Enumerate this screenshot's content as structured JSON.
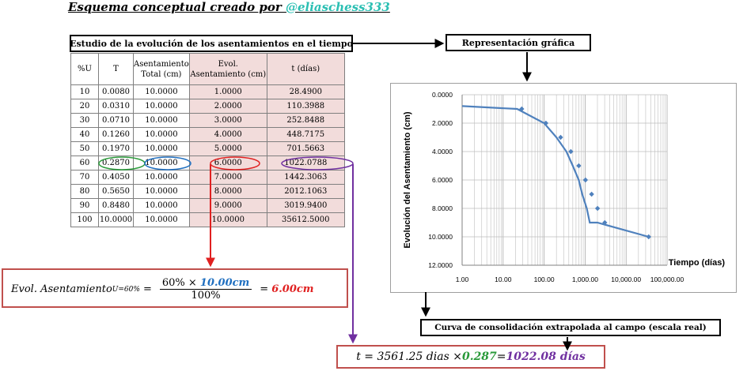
{
  "title": {
    "prefix": "Esquema  conceptual creado por ",
    "user": "@eliaschess333"
  },
  "table_title": "Estudio de la evolución de los asentamientos en el tiempo",
  "graph_title": "Representación gráfica",
  "curve_title": "Curva de consolidación extrapolada al campo (escala real)",
  "table": {
    "headers": [
      "%U",
      "T",
      "Asentamiento Total (cm)",
      "Evol. Asentamiento (cm)",
      "t (días)"
    ],
    "rows": [
      [
        "10",
        "0.0080",
        "10.0000",
        "1.0000",
        "28.4900"
      ],
      [
        "20",
        "0.0310",
        "10.0000",
        "2.0000",
        "110.3988"
      ],
      [
        "30",
        "0.0710",
        "10.0000",
        "3.0000",
        "252.8488"
      ],
      [
        "40",
        "0.1260",
        "10.0000",
        "4.0000",
        "448.7175"
      ],
      [
        "50",
        "0.1970",
        "10.0000",
        "5.0000",
        "701.5663"
      ],
      [
        "60",
        "0.2870",
        "10.0000",
        "6.0000",
        "1022.0788"
      ],
      [
        "70",
        "0.4050",
        "10.0000",
        "7.0000",
        "1442.3063"
      ],
      [
        "80",
        "0.5650",
        "10.0000",
        "8.0000",
        "2012.1063"
      ],
      [
        "90",
        "0.8480",
        "10.0000",
        "9.0000",
        "3019.9400"
      ],
      [
        "100",
        "10.0000",
        "10.0000",
        "10.0000",
        "35612.5000"
      ]
    ]
  },
  "formula1": {
    "lhs": "Evol. Asentamiento",
    "sub": "U=60%",
    "eq": "=",
    "num_a": "60% × ",
    "num_b": "10.00cm",
    "den": "100%",
    "result": "6.00cm"
  },
  "formula2": {
    "lhs": "t = 3561.25 dias × ",
    "factor": "0.287",
    "eq": " = ",
    "result": "1022.08 días"
  },
  "chart_data": {
    "type": "line",
    "x_scale": "log",
    "xlabel": "Tiempo (días)",
    "ylabel": "Evolución del Asentamiento (cm)",
    "xlim": [
      1,
      100000
    ],
    "ylim": [
      0,
      12
    ],
    "y_inverted": true,
    "grid": true,
    "x_ticks": [
      "1.00",
      "10.00",
      "100.00",
      "1,000.00",
      "10,000.00",
      "100,000.00"
    ],
    "y_ticks": [
      "0.0000",
      "2.0000",
      "4.0000",
      "6.0000",
      "8.0000",
      "10.0000",
      "12.0000"
    ],
    "color": "#4f81bd",
    "x": [
      1,
      22,
      100,
      200,
      350,
      500,
      700,
      850,
      1100,
      1300,
      2000,
      35612.5
    ],
    "y": [
      0.8,
      1.0,
      2.0,
      3.0,
      4.0,
      5.0,
      6.0,
      7.0,
      8.0,
      9.0,
      9.0,
      10.0
    ],
    "markers_x": [
      28.49,
      110.3988,
      252.8488,
      448.7175,
      701.5663,
      1022.0788,
      1442.3063,
      2012.1063,
      3019.94,
      35612.5
    ],
    "markers_y": [
      1,
      2,
      3,
      4,
      5,
      6,
      7,
      8,
      9,
      10
    ]
  }
}
